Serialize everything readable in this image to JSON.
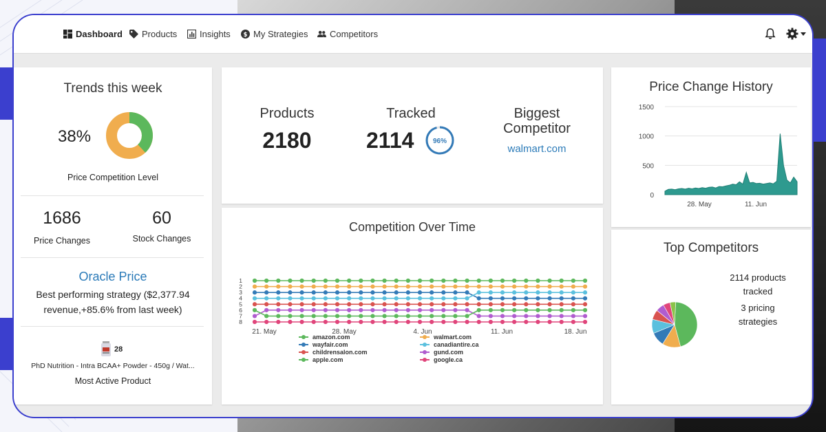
{
  "nav": {
    "items": [
      {
        "label": "Dashboard",
        "icon": "dashboard-icon"
      },
      {
        "label": "Products",
        "icon": "tag-icon"
      },
      {
        "label": "Insights",
        "icon": "bar-chart-icon"
      },
      {
        "label": "My Strategies",
        "icon": "dollar-circle-icon"
      },
      {
        "label": "Competitors",
        "icon": "people-icon"
      }
    ]
  },
  "trends": {
    "title": "Trends this week",
    "percent_label": "38%",
    "competition_fraction": 0.38,
    "competition_label": "Price Competition Level",
    "price_changes_value": "1686",
    "price_changes_label": "Price Changes",
    "stock_changes_value": "60",
    "stock_changes_label": "Stock Changes",
    "oracle_title": "Oracle Price",
    "oracle_desc_line1": "Best performing strategy ($2,377.94",
    "oracle_desc_line2": "revenue,+85.6% from last week)",
    "product_count": "28",
    "product_name": "PhD Nutrition - Intra BCAA+ Powder - 450g / Wat...",
    "product_label": "Most Active Product"
  },
  "summary": {
    "products_label": "Products",
    "products_value": "2180",
    "tracked_label": "Tracked",
    "tracked_value": "2114",
    "tracked_percent_label": "96%",
    "tracked_fraction": 0.96,
    "biggest_label_line1": "Biggest",
    "biggest_label_line2": "Competitor",
    "biggest_value": "walmart.com"
  },
  "colors": {
    "accent": "#3b3fce",
    "link": "#2a7ab8",
    "green": "#5cb85c",
    "orange": "#f0ad4e",
    "ring_blue": "#337ab7"
  },
  "competition_chart": {
    "title": "Competition Over Time",
    "chart_data": {
      "type": "line",
      "title": "Competition Over Time",
      "x_tick_labels": [
        "21. May",
        "28. May",
        "4. Jun",
        "11. Jun",
        "18. Jun"
      ],
      "y_tick_labels": [
        "1",
        "2",
        "3",
        "4",
        "5",
        "6",
        "7",
        "8"
      ],
      "ylim": [
        1,
        8
      ],
      "y_reversed": true,
      "x_points": 29,
      "series": [
        {
          "name": "amazon.com",
          "color": "#5cb85c",
          "values": [
            1,
            1,
            1,
            1,
            1,
            1,
            1,
            1,
            1,
            1,
            1,
            1,
            1,
            1,
            1,
            1,
            1,
            1,
            1,
            1,
            1,
            1,
            1,
            1,
            1,
            1,
            1,
            1,
            1
          ]
        },
        {
          "name": "walmart.com",
          "color": "#f0ad4e",
          "values": [
            2,
            2,
            2,
            2,
            2,
            2,
            2,
            2,
            2,
            2,
            2,
            2,
            2,
            2,
            2,
            2,
            2,
            2,
            2,
            2,
            2,
            2,
            2,
            2,
            2,
            2,
            2,
            2,
            2
          ]
        },
        {
          "name": "wayfair.com",
          "color": "#337ab7",
          "values": [
            3,
            3,
            3,
            3,
            3,
            3,
            3,
            3,
            3,
            3,
            3,
            3,
            3,
            3,
            3,
            3,
            3,
            3,
            3,
            4,
            4,
            4,
            4,
            4,
            4,
            4,
            4,
            4,
            4
          ]
        },
        {
          "name": "canadiantire.ca",
          "color": "#5bc0de",
          "values": [
            4,
            4,
            4,
            4,
            4,
            4,
            4,
            4,
            4,
            4,
            4,
            4,
            4,
            4,
            4,
            4,
            4,
            4,
            4,
            3,
            3,
            3,
            3,
            3,
            3,
            3,
            3,
            3,
            3
          ]
        },
        {
          "name": "childrensalon.com",
          "color": "#d9534f",
          "values": [
            5,
            5,
            5,
            5,
            5,
            5,
            5,
            5,
            5,
            5,
            5,
            5,
            5,
            5,
            5,
            5,
            5,
            5,
            5,
            5,
            5,
            5,
            5,
            5,
            5,
            5,
            5,
            5,
            5
          ]
        },
        {
          "name": "gund.com",
          "color": "#b05ccf",
          "values": [
            7,
            6,
            6,
            6,
            6,
            6,
            6,
            6,
            6,
            6,
            6,
            6,
            6,
            6,
            6,
            6,
            6,
            6,
            6,
            7,
            7,
            7,
            7,
            7,
            7,
            7,
            7,
            7,
            7
          ]
        },
        {
          "name": "apple.com",
          "color": "#5cb85c",
          "values": [
            6,
            7,
            7,
            7,
            7,
            7,
            7,
            7,
            7,
            7,
            7,
            7,
            7,
            7,
            7,
            7,
            7,
            7,
            7,
            6,
            6,
            6,
            6,
            6,
            6,
            6,
            6,
            6,
            6
          ]
        },
        {
          "name": "google.ca",
          "color": "#e0457b",
          "values": [
            8,
            8,
            8,
            8,
            8,
            8,
            8,
            8,
            8,
            8,
            8,
            8,
            8,
            8,
            8,
            8,
            8,
            8,
            8,
            8,
            8,
            8,
            8,
            8,
            8,
            8,
            8,
            8,
            8
          ]
        }
      ],
      "legend_position": "bottom"
    }
  },
  "price_history": {
    "title": "Price Change History",
    "chart_data": {
      "type": "area",
      "title": "Price Change History",
      "x_tick_labels": [
        "28. May",
        "11. Jun"
      ],
      "y_tick_labels": [
        "1500",
        "1000",
        "500",
        "0"
      ],
      "ylim": [
        0,
        1500
      ],
      "values": [
        60,
        90,
        95,
        85,
        100,
        105,
        95,
        110,
        100,
        115,
        105,
        120,
        110,
        125,
        130,
        115,
        140,
        135,
        150,
        160,
        180,
        170,
        220,
        180,
        380,
        200,
        210,
        190,
        195,
        180,
        190,
        200,
        185,
        230,
        1040,
        500,
        250,
        200,
        300,
        220
      ],
      "color": "#2e9a8f",
      "grid": true
    }
  },
  "top_competitors": {
    "title": "Top Competitors",
    "tracked_line1": "2114 products",
    "tracked_line2": "tracked",
    "strategies_line1": "3 pricing",
    "strategies_line2": "strategies",
    "chart_data": {
      "type": "pie",
      "values": [
        45,
        13,
        10,
        10,
        7,
        6,
        5,
        4
      ],
      "colors": [
        "#5cb85c",
        "#f0ad4e",
        "#337ab7",
        "#5bc0de",
        "#d9534f",
        "#b05ccf",
        "#e0457b",
        "#8bc34a"
      ]
    }
  }
}
